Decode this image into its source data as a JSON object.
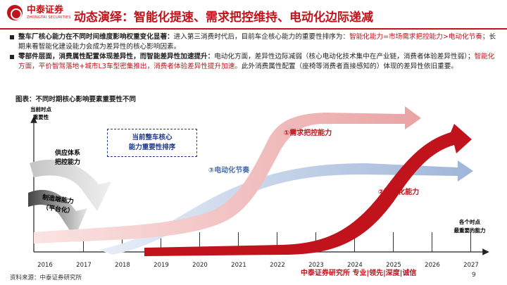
{
  "brand": {
    "name_cn": "中泰证券",
    "name_en": "ZHONGTAI SECURITIES"
  },
  "title": "动态演绎：智能化提速、需求把控维持、电动化边际递减",
  "bullets": [
    {
      "lead": "整车厂核心能力在不同时间维度影响权重变化显著：",
      "text1": "进入第三消费时代后，目前车企核心能力的重要性排序为：",
      "red1": "智能化能力=市场需求把控能力>电动化节奏；",
      "text2": "长期来看智能化建设能力会成为差异性的核心影响因素。"
    },
    {
      "lead": "零部件层面，消费属性配置体现差异性，而智能差异性加速提升：",
      "text1": "电动化方面，差异性边际减弱（核心电动化技术集中在产业链，消费者体验差异性弱）；",
      "red1": "智能化方面，平价智驾落地+城市L3车型密集推出，消费者体验差异性提升加速。",
      "text2": "此外消费属性配置（座椅等消费者直接感知的）体现的差异性依旧重要。"
    }
  ],
  "figure_title": "图表：不同时期核心影响要素重要性不同",
  "chart_data": {
    "type": "line",
    "x_ticks": [
      "2016",
      "2017",
      "2018",
      "2019",
      "2020",
      "2021",
      "2022",
      "2023",
      "2024",
      "2025",
      "2026",
      "2027"
    ],
    "y_axis_label": [
      "当前时点",
      "重要性"
    ],
    "x_axis_label": [
      "各个时点",
      "最重要的能力"
    ],
    "callout": [
      "当前整车核心",
      "能力重要性排序"
    ],
    "series": [
      {
        "name": "①需求把控能力",
        "color": "#e8a0a0"
      },
      {
        "name": "②智能化能力",
        "color": "#c0131b"
      },
      {
        "name": "③电动化节奏",
        "color": "#9fb6d8"
      },
      {
        "name": "供应体系把控能力",
        "color": "#cfcfcf"
      },
      {
        "name": "制造端能力（平台化）",
        "color": "#555555"
      }
    ],
    "labels": {
      "supply": [
        "供应体系",
        "把控能力"
      ],
      "manufacture": [
        "制造端能力",
        "（平台化）"
      ],
      "demand": "①需求把控能力",
      "smart": "②智能化能力",
      "electric": "③电动化节奏"
    }
  },
  "footer": {
    "source": "资料来源：中泰证券研究所",
    "brand": "中泰证券研究所 专业|领先|深度|诚信",
    "page": "9"
  }
}
